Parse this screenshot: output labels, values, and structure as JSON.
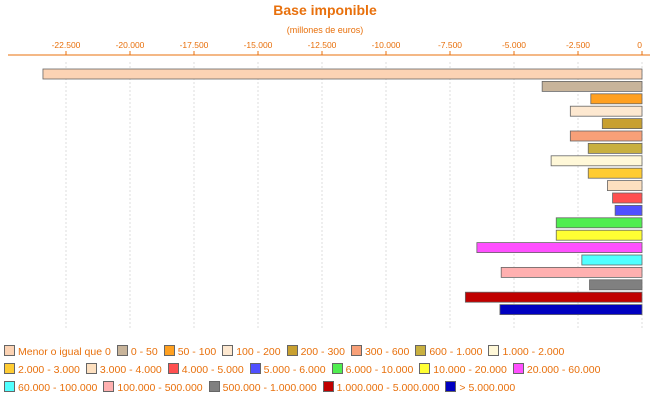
{
  "chart_data": {
    "type": "bar",
    "orientation": "horizontal",
    "title": "Base imponible",
    "subtitle": "(millones de euros)",
    "xlim": [
      -24000,
      0
    ],
    "x_ticks": [
      -22500,
      -20000,
      -17500,
      -15000,
      -12500,
      -10000,
      -7500,
      -5000,
      -2500,
      0
    ],
    "x_tick_labels": [
      "-22.500",
      "-20.000",
      "-17.500",
      "-15.000",
      "-12.500",
      "-10.000",
      "-7.500",
      "-5.000",
      "-2.500",
      "0"
    ],
    "grid": true,
    "legend_position": "bottom",
    "series": [
      {
        "name": "Menor o igual que 0",
        "value": -23400,
        "color": "#fcd3b4"
      },
      {
        "name": "0 - 50",
        "value": -3900,
        "color": "#c8b49a"
      },
      {
        "name": "50 - 100",
        "value": -2000,
        "color": "#ffa020"
      },
      {
        "name": "100 - 200",
        "value": -2800,
        "color": "#fde8d0"
      },
      {
        "name": "200 - 300",
        "value": -1550,
        "color": "#c8a030"
      },
      {
        "name": "300 - 600",
        "value": -2800,
        "color": "#f8a078"
      },
      {
        "name": "600 - 1.000",
        "value": -2100,
        "color": "#c8b040"
      },
      {
        "name": "1.000 - 2.000",
        "value": -3550,
        "color": "#fff8d8"
      },
      {
        "name": "2.000 - 3.000",
        "value": -2100,
        "color": "#ffcc33"
      },
      {
        "name": "3.000 - 4.000",
        "value": -1350,
        "color": "#fde0c0"
      },
      {
        "name": "4.000 - 5.000",
        "value": -1150,
        "color": "#ff5050"
      },
      {
        "name": "5.000 - 6.000",
        "value": -1050,
        "color": "#5050ff"
      },
      {
        "name": "6.000 - 10.000",
        "value": -3350,
        "color": "#50ee50"
      },
      {
        "name": "10.000 - 20.000",
        "value": -3350,
        "color": "#ffff33"
      },
      {
        "name": "20.000 - 60.000",
        "value": -6450,
        "color": "#ff50ff"
      },
      {
        "name": "60.000 - 100.000",
        "value": -2350,
        "color": "#50ffff"
      },
      {
        "name": "100.000 - 500.000",
        "value": -5500,
        "color": "#ffb0b0"
      },
      {
        "name": "500.000 - 1.000.000",
        "value": -2050,
        "color": "#808080"
      },
      {
        "name": "1.000.000 - 5.000.000",
        "value": -6900,
        "color": "#c00000"
      },
      {
        "name": "> 5.000.000",
        "value": -5550,
        "color": "#0000c0"
      }
    ]
  },
  "colors": {
    "accent": "#e8700c",
    "grid": "#dddddd",
    "bar_border": "#666666"
  }
}
